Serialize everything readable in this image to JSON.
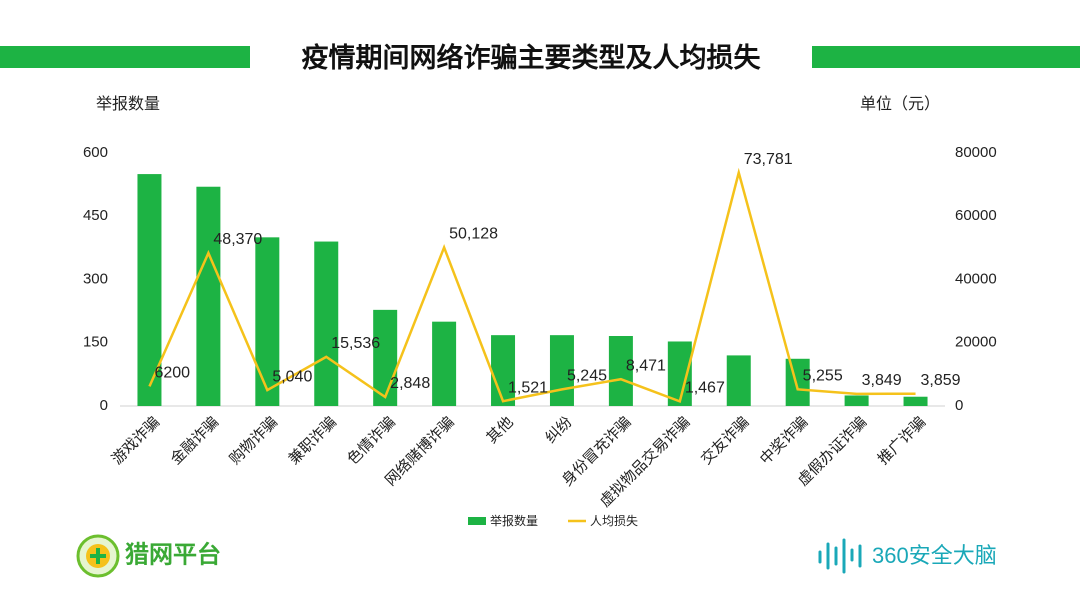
{
  "chart_data": {
    "type": "bar_line",
    "title": "疫情期间网络诈骗主要类型及人均损失",
    "y_axis_label": "举报数量",
    "y2_axis_label": "单位（元）",
    "categories": [
      "游戏诈骗",
      "金融诈骗",
      "购物诈骗",
      "兼职诈骗",
      "色情诈骗",
      "网络赌博诈骗",
      "其他",
      "纠纷",
      "身份冒充诈骗",
      "虚拟物品交易诈骗",
      "交友诈骗",
      "中奖诈骗",
      "虚假办证诈骗",
      "推广诈骗"
    ],
    "series": [
      {
        "name": "举报数量",
        "type": "bar",
        "color": "#1db344",
        "axis": "y",
        "values": [
          550,
          520,
          400,
          390,
          228,
          200,
          168,
          168,
          166,
          153,
          120,
          112,
          25,
          22
        ]
      },
      {
        "name": "人均损失",
        "type": "line",
        "color": "#f5c21b",
        "axis": "y2",
        "values": [
          6200,
          48370,
          5040,
          15536,
          2848,
          50128,
          1521,
          5245,
          8471,
          1467,
          73781,
          5255,
          3849,
          3859
        ],
        "value_labels": [
          "6200",
          "48,370",
          "5,040",
          "15,536",
          "2,848",
          "50,128",
          "1,521",
          "5,245",
          "8,471",
          "1,467",
          "73,781",
          "5,255",
          "3,849",
          "3,859"
        ]
      }
    ],
    "ylim": [
      0,
      600
    ],
    "yticks": [
      0,
      150,
      300,
      450,
      600
    ],
    "y2lim": [
      0,
      80000
    ],
    "y2ticks": [
      0,
      20000,
      40000,
      60000,
      80000
    ],
    "grid": false,
    "legend": "bottom"
  },
  "footer": {
    "left_logo": "猎网平台",
    "right_logo": "360安全大脑"
  }
}
